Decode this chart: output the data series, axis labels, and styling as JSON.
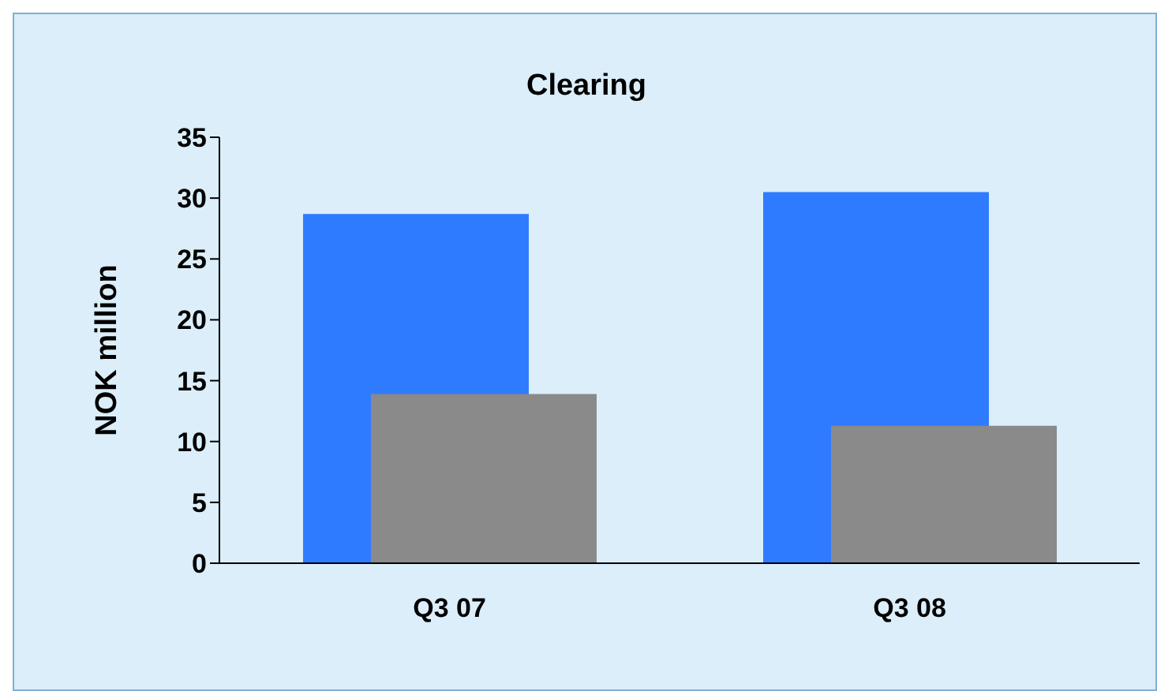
{
  "chart_data": {
    "type": "bar",
    "title": "Clearing",
    "ylabel": "NOK million",
    "categories": [
      "Q3 07",
      "Q3 08"
    ],
    "series": [
      {
        "color": "#2f7bff",
        "values": [
          28.7,
          30.5
        ]
      },
      {
        "color": "#8a8a8a",
        "values": [
          13.9,
          11.3
        ]
      }
    ],
    "ylim": [
      0,
      35
    ],
    "yticks": [
      0,
      5,
      10,
      15,
      20,
      25,
      30,
      35
    ],
    "grid": false,
    "legend": false
  }
}
